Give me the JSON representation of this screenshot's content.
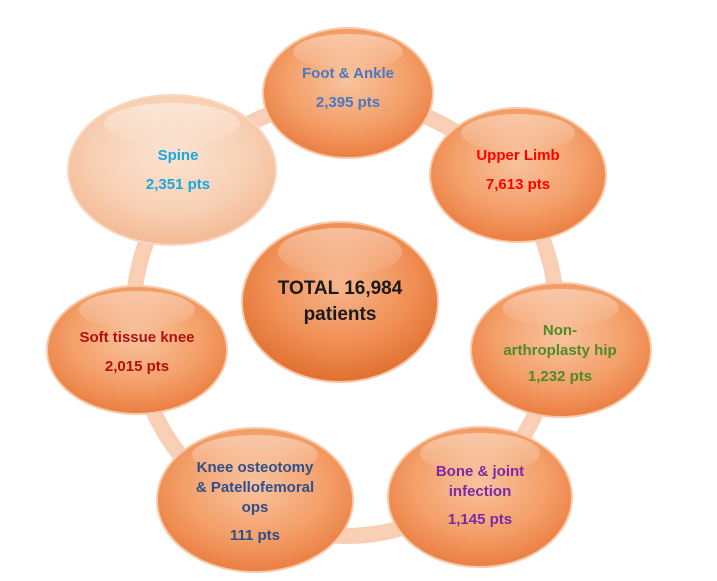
{
  "center": {
    "line1": "TOTAL 16,984",
    "line2": "patients"
  },
  "nodes": [
    {
      "id": "foot-ankle",
      "name": "Foot & Ankle",
      "pts": "2,395 pts",
      "color": "#4a78c4",
      "fill": "orange"
    },
    {
      "id": "upper-limb",
      "name": "Upper Limb",
      "pts": "7,613 pts",
      "color": "#ff0000",
      "fill": "orange"
    },
    {
      "id": "non-arthroplasty-hip",
      "name_lines": [
        "Non-",
        "arthroplasty hip"
      ],
      "pts": "1,232 pts",
      "color": "#4f8a2a",
      "fill": "orange"
    },
    {
      "id": "bone-joint-infection",
      "name_lines": [
        "Bone & joint",
        "infection"
      ],
      "pts": "1,145 pts",
      "color": "#7a2aa8",
      "fill": "orange"
    },
    {
      "id": "knee-osteotomy",
      "name_lines": [
        "Knee osteotomy",
        "& Patellofemoral",
        "ops"
      ],
      "pts": "111 pts",
      "color": "#2f4f8a",
      "fill": "orange"
    },
    {
      "id": "soft-tissue-knee",
      "name": "Soft tissue knee",
      "pts": "2,015 pts",
      "color": "#b01010",
      "fill": "orange"
    },
    {
      "id": "spine",
      "name": "Spine",
      "pts": "2,351 pts",
      "color": "#1aa8e0",
      "fill": "pale"
    }
  ]
}
